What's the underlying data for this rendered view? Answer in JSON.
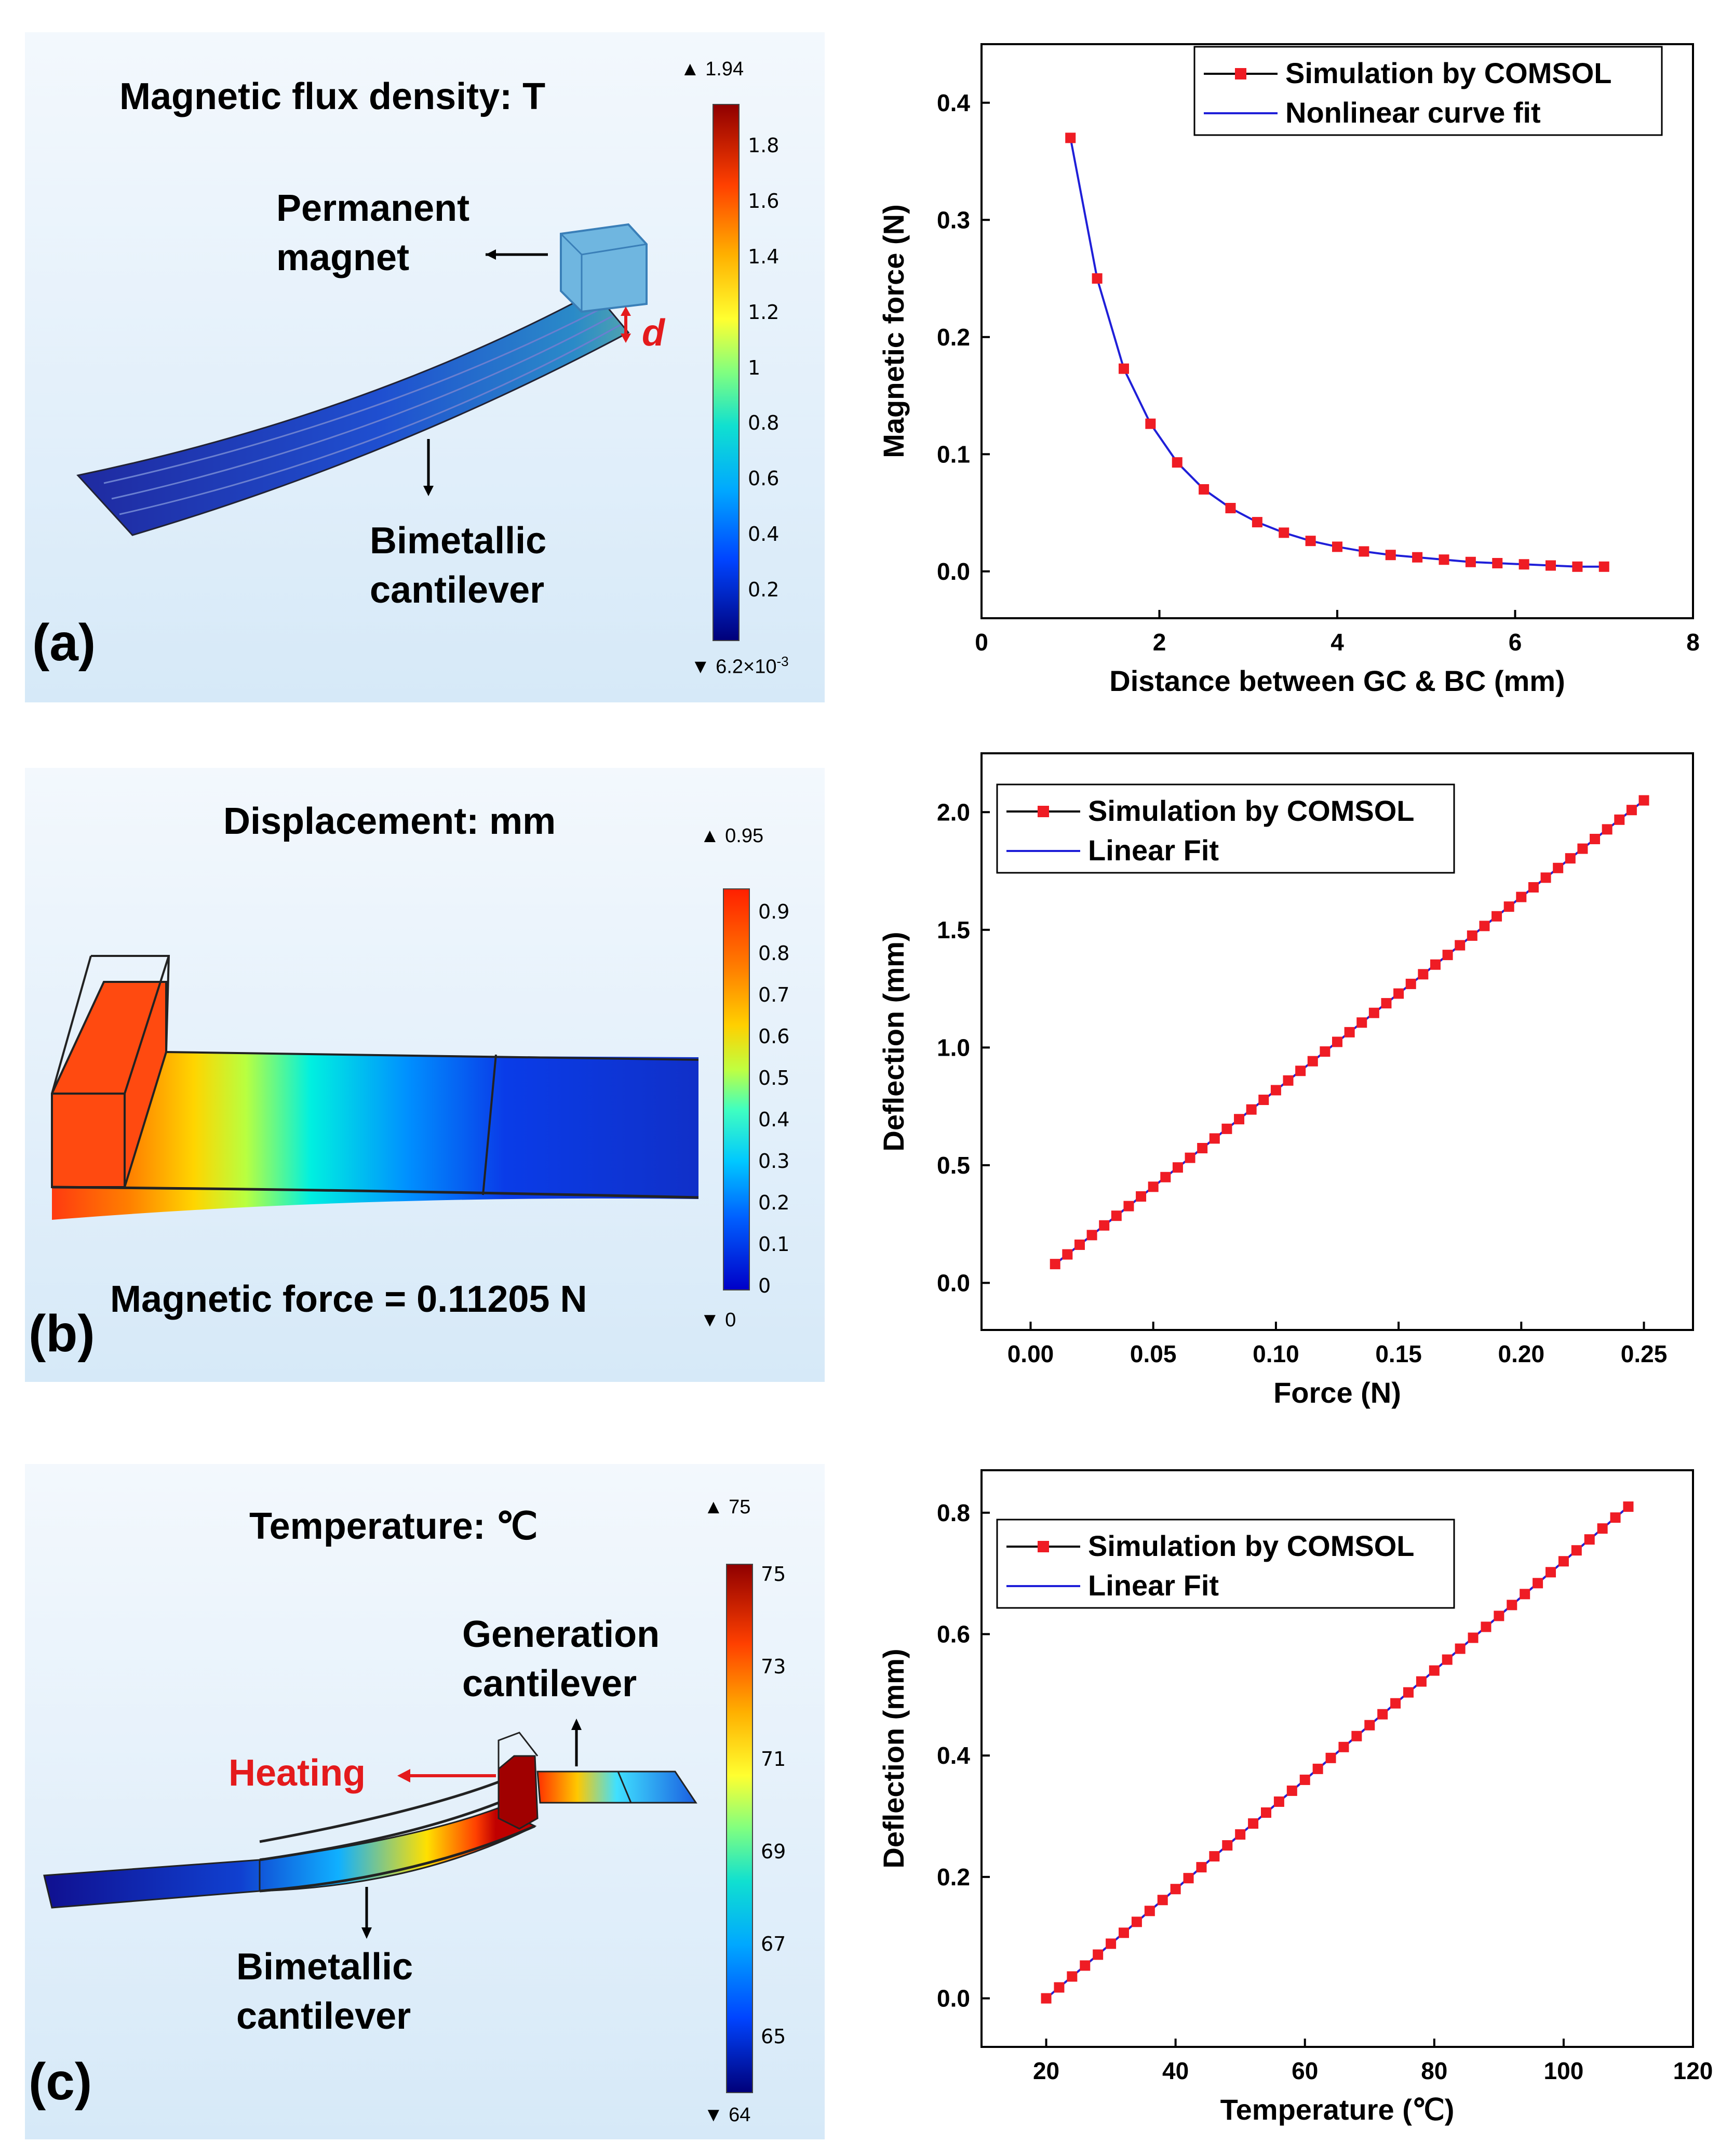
{
  "panels": [
    {
      "label": "(a)",
      "title": "Magnetic flux density: T",
      "callouts": [
        "Permanent",
        "magnet",
        "Bimetallic",
        "cantilever",
        "d"
      ],
      "colorbar": {
        "max_label": "1.94",
        "min_label": "6.2×10",
        "min_exp": "-3",
        "ticks": [
          "1.8",
          "1.6",
          "1.4",
          "1.2",
          "1",
          "0.8",
          "0.6",
          "0.4",
          "0.2"
        ]
      }
    },
    {
      "label": "(b)",
      "title": "Displacement: mm",
      "note": "Magnetic force = 0.11205 N",
      "colorbar": {
        "max_label": "0.95",
        "min_label": "0",
        "ticks": [
          "0.9",
          "0.8",
          "0.7",
          "0.6",
          "0.5",
          "0.4",
          "0.3",
          "0.2",
          "0.1",
          "0"
        ]
      }
    },
    {
      "label": "(c)",
      "title": "Temperature: ℃",
      "callouts": [
        "Generation",
        "cantilever",
        "Heating",
        "Bimetallic",
        "cantilever"
      ],
      "colorbar": {
        "max_label": "75",
        "min_label": "64",
        "ticks": [
          "75",
          "73",
          "71",
          "69",
          "67",
          "65"
        ]
      }
    }
  ],
  "chart_data": [
    {
      "type": "line",
      "xlabel": "Distance between GC & BC (mm)",
      "ylabel": "Magnetic force (N)",
      "xlim": [
        0,
        8
      ],
      "ylim": [
        -0.04,
        0.45
      ],
      "xticks": [
        0,
        2,
        4,
        6,
        8
      ],
      "yticks": [
        0.0,
        0.1,
        0.2,
        0.3,
        0.4
      ],
      "xtick_labels": [
        "0",
        "2",
        "4",
        "6",
        "8"
      ],
      "ytick_labels": [
        "0.0",
        "0.1",
        "0.2",
        "0.3",
        "0.4"
      ],
      "legend": [
        "Simulation by COMSOL",
        "Nonlinear curve fit"
      ],
      "legend_position": "top-right",
      "series": [
        {
          "name": "Simulation by COMSOL",
          "x": [
            1.0,
            1.3,
            1.6,
            1.9,
            2.2,
            2.5,
            2.8,
            3.1,
            3.4,
            3.7,
            4.0,
            4.3,
            4.6,
            4.9,
            5.2,
            5.5,
            5.8,
            6.1,
            6.4,
            6.7,
            7.0
          ],
          "y": [
            0.37,
            0.25,
            0.173,
            0.126,
            0.093,
            0.07,
            0.054,
            0.042,
            0.033,
            0.026,
            0.021,
            0.017,
            0.014,
            0.012,
            0.01,
            0.008,
            0.007,
            0.006,
            0.005,
            0.004,
            0.004
          ]
        },
        {
          "name": "Nonlinear curve fit",
          "x": [
            1.0,
            1.3,
            1.6,
            1.9,
            2.2,
            2.5,
            2.8,
            3.1,
            3.4,
            3.7,
            4.0,
            4.3,
            4.6,
            4.9,
            5.2,
            5.5,
            5.8,
            6.1,
            6.4,
            6.7,
            7.0
          ],
          "y": [
            0.37,
            0.25,
            0.173,
            0.126,
            0.093,
            0.07,
            0.054,
            0.042,
            0.033,
            0.026,
            0.021,
            0.017,
            0.014,
            0.012,
            0.01,
            0.008,
            0.007,
            0.006,
            0.005,
            0.004,
            0.004
          ]
        }
      ]
    },
    {
      "type": "line",
      "xlabel": "Force (N)",
      "ylabel": "Deflection (mm)",
      "xlim": [
        -0.02,
        0.27
      ],
      "ylim": [
        -0.2,
        2.25
      ],
      "xticks": [
        0.0,
        0.05,
        0.1,
        0.15,
        0.2,
        0.25
      ],
      "yticks": [
        0.0,
        0.5,
        1.0,
        1.5,
        2.0
      ],
      "xtick_labels": [
        "0.00",
        "0.05",
        "0.10",
        "0.15",
        "0.20",
        "0.25"
      ],
      "ytick_labels": [
        "0.0",
        "0.5",
        "1.0",
        "1.5",
        "2.0"
      ],
      "legend": [
        "Simulation by COMSOL",
        "Linear Fit"
      ],
      "legend_position": "top-left",
      "series": [
        {
          "name": "Simulation by COMSOL",
          "x_start": 0.01,
          "x_end": 0.25,
          "n": 49,
          "y_start": 0.08,
          "y_end": 2.05
        },
        {
          "name": "Linear Fit",
          "x_start": 0.01,
          "x_end": 0.25,
          "n": 2,
          "y_start": 0.08,
          "y_end": 2.05
        }
      ]
    },
    {
      "type": "line",
      "xlabel": "Temperature (℃)",
      "ylabel": "Deflection (mm)",
      "xlim": [
        10,
        120
      ],
      "ylim": [
        -0.08,
        0.87
      ],
      "xticks": [
        20,
        40,
        60,
        80,
        100,
        120
      ],
      "yticks": [
        0.0,
        0.2,
        0.4,
        0.6,
        0.8
      ],
      "xtick_labels": [
        "20",
        "40",
        "60",
        "80",
        "100",
        "120"
      ],
      "ytick_labels": [
        "0.0",
        "0.2",
        "0.4",
        "0.6",
        "0.8"
      ],
      "legend": [
        "Simulation by COMSOL",
        "Linear Fit"
      ],
      "legend_position": "top-left",
      "series": [
        {
          "name": "Simulation by COMSOL",
          "x_start": 20,
          "x_end": 110,
          "n": 46,
          "y_start": 0.0,
          "y_end": 0.81
        },
        {
          "name": "Linear Fit",
          "x_start": 20,
          "x_end": 110,
          "n": 2,
          "y_start": 0.0,
          "y_end": 0.81
        }
      ]
    }
  ]
}
